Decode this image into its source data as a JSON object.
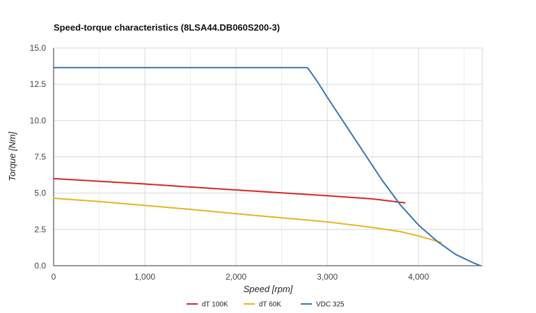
{
  "chart_data": {
    "type": "line",
    "title": "Speed-torque characteristics (8LSA44.DB060S200-3)",
    "xlabel": "Speed [rpm]",
    "ylabel": "Torque [Nm]",
    "xlim": [
      0,
      4700
    ],
    "ylim": [
      0,
      15
    ],
    "x_ticks": [
      0,
      1000,
      2000,
      3000,
      4000
    ],
    "x_tick_labels": [
      "0",
      "1,000",
      "2,000",
      "3,000",
      "4,000"
    ],
    "y_ticks": [
      0,
      2.5,
      5,
      7.5,
      10,
      12.5,
      15
    ],
    "y_tick_labels": [
      "0.0",
      "2.5",
      "5.0",
      "7.5",
      "10.0",
      "12.5",
      "15.0"
    ],
    "grid": true,
    "legend_position": "bottom",
    "series": [
      {
        "name": "dT 100K",
        "color": "#d62728",
        "x": [
          0,
          500,
          1000,
          1500,
          2000,
          2500,
          3000,
          3500,
          3850
        ],
        "y": [
          6.0,
          5.82,
          5.63,
          5.42,
          5.22,
          5.02,
          4.82,
          4.6,
          4.33
        ]
      },
      {
        "name": "dT 60K",
        "color": "#e5b422",
        "x": [
          0,
          500,
          1000,
          1500,
          2000,
          2500,
          3000,
          3500,
          3800,
          4000,
          4250
        ],
        "y": [
          4.65,
          4.42,
          4.15,
          3.88,
          3.58,
          3.3,
          3.02,
          2.63,
          2.35,
          2.05,
          1.6
        ]
      },
      {
        "name": "VDC 325",
        "color": "#3a76af",
        "x": [
          0,
          1000,
          2000,
          2780,
          2800,
          2900,
          3000,
          3200,
          3400,
          3600,
          3800,
          4000,
          4200,
          4400,
          4600,
          4680
        ],
        "y": [
          13.65,
          13.65,
          13.65,
          13.65,
          13.5,
          12.6,
          11.6,
          9.7,
          7.8,
          5.9,
          4.2,
          2.8,
          1.7,
          0.8,
          0.2,
          0.0
        ]
      }
    ]
  }
}
